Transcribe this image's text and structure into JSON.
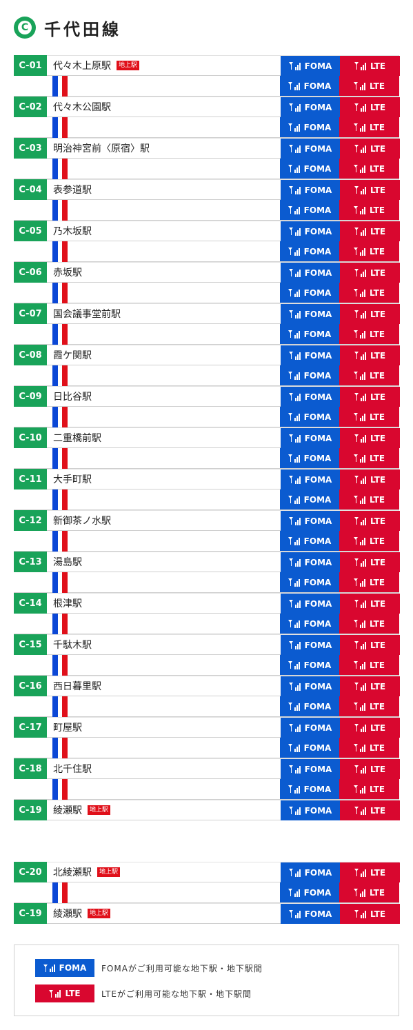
{
  "header": {
    "line_letter": "C",
    "title": "千代田線"
  },
  "badges": {
    "foma": "FOMA",
    "lte": "LTE"
  },
  "surface_label": "地上駅",
  "main_stations": [
    {
      "code": "C-01",
      "name": "代々木上原駅",
      "surface": true
    },
    {
      "code": "C-02",
      "name": "代々木公園駅",
      "surface": false
    },
    {
      "code": "C-03",
      "name": "明治神宮前〈原宿〉駅",
      "surface": false
    },
    {
      "code": "C-04",
      "name": "表参道駅",
      "surface": false
    },
    {
      "code": "C-05",
      "name": "乃木坂駅",
      "surface": false
    },
    {
      "code": "C-06",
      "name": "赤坂駅",
      "surface": false
    },
    {
      "code": "C-07",
      "name": "国会議事堂前駅",
      "surface": false
    },
    {
      "code": "C-08",
      "name": "霞ケ関駅",
      "surface": false
    },
    {
      "code": "C-09",
      "name": "日比谷駅",
      "surface": false
    },
    {
      "code": "C-10",
      "name": "二重橋前駅",
      "surface": false
    },
    {
      "code": "C-11",
      "name": "大手町駅",
      "surface": false
    },
    {
      "code": "C-12",
      "name": "新御茶ノ水駅",
      "surface": false
    },
    {
      "code": "C-13",
      "name": "湯島駅",
      "surface": false
    },
    {
      "code": "C-14",
      "name": "根津駅",
      "surface": false
    },
    {
      "code": "C-15",
      "name": "千駄木駅",
      "surface": false
    },
    {
      "code": "C-16",
      "name": "西日暮里駅",
      "surface": false
    },
    {
      "code": "C-17",
      "name": "町屋駅",
      "surface": false
    },
    {
      "code": "C-18",
      "name": "北千住駅",
      "surface": false
    },
    {
      "code": "C-19",
      "name": "綾瀬駅",
      "surface": true
    }
  ],
  "branch_stations": [
    {
      "code": "C-20",
      "name": "北綾瀬駅",
      "surface": true
    },
    {
      "code": "C-19",
      "name": "綾瀬駅",
      "surface": true
    }
  ],
  "legend": {
    "foma_text": "FOMAがご利用可能な地下駅・地下駅間",
    "lte_text": "LTEがご利用可能な地下駅・地下駅間"
  },
  "colors": {
    "line": "#19a359",
    "foma": "#0b5bd0",
    "lte": "#d9072f",
    "track_blue": "#0b47d6",
    "track_red": "#e0101a"
  }
}
